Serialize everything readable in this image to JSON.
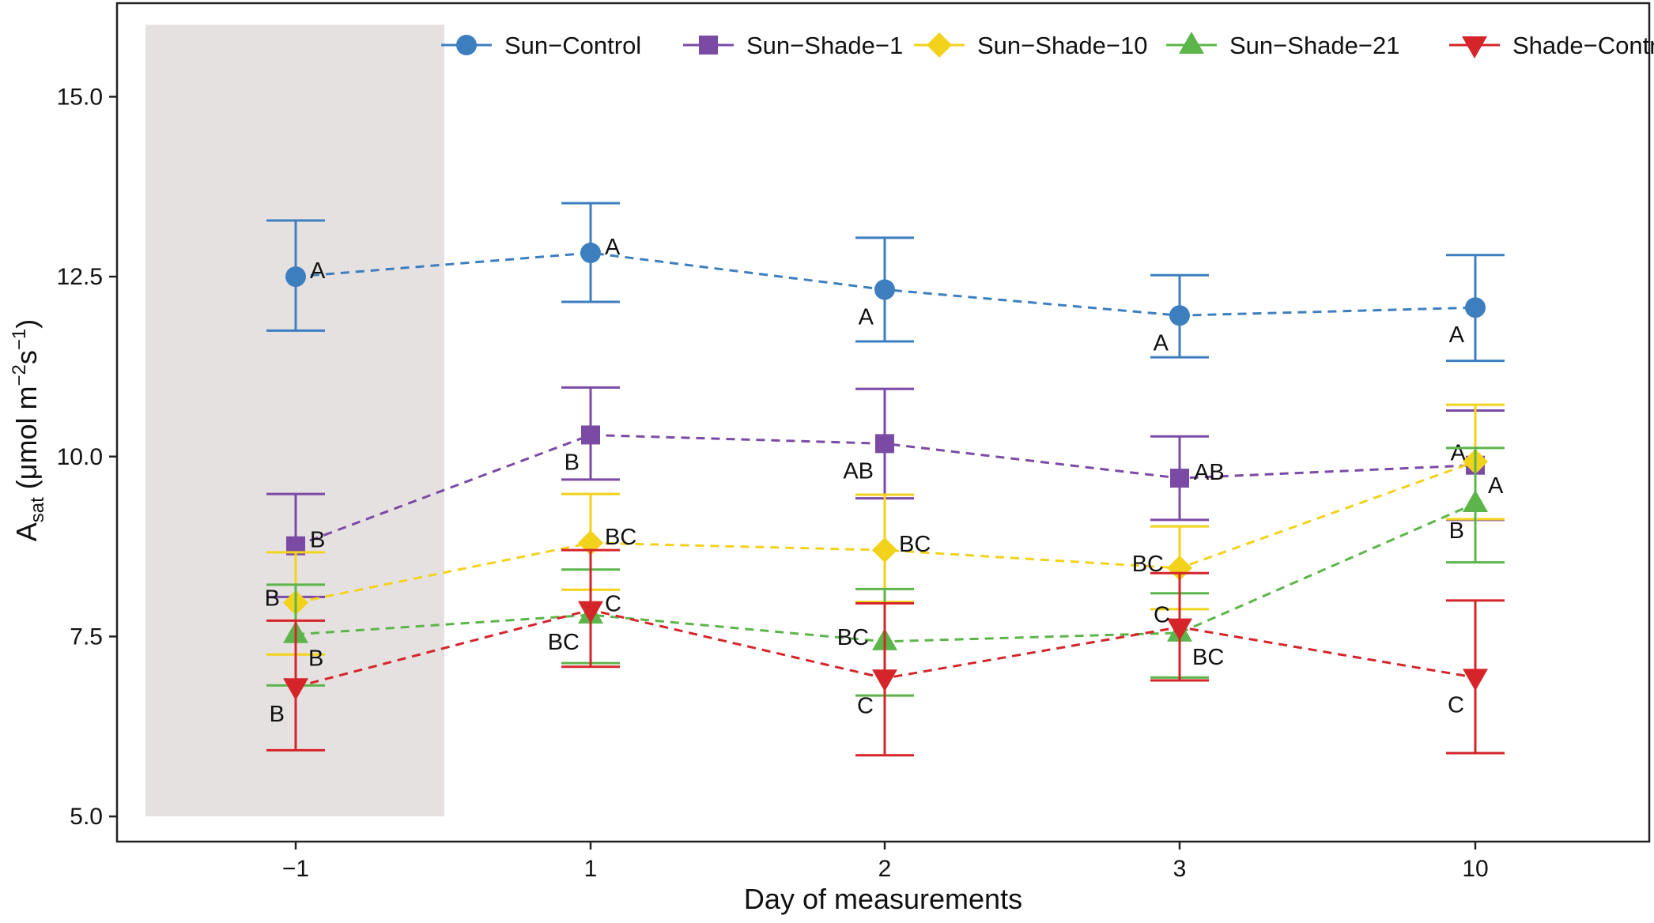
{
  "chart_data": {
    "type": "line",
    "xlabel": "Day of measurements",
    "ylabel_main": "A",
    "ylabel_sub": "sat",
    "ylabel_unit_prefix": " (μmol m",
    "ylabel_unit_sup1": "−2",
    "ylabel_unit_mid": "s",
    "ylabel_unit_sup2": "−1",
    "ylabel_unit_suffix": ")",
    "categories": [
      "−1",
      "1",
      "2",
      "3",
      "10"
    ],
    "ylim": [
      4.65,
      16.3
    ],
    "yticks": [
      5.0,
      7.5,
      10.0,
      12.5,
      15.0
    ],
    "ytick_labels": [
      "5.0",
      "7.5",
      "10.0",
      "12.5",
      "15.0"
    ],
    "grid": false,
    "legend_position": "top",
    "shaded_region": {
      "from_category": "−1",
      "y_from": 5.0,
      "y_to": 16.0,
      "color": "#e6e1e1"
    },
    "series": [
      {
        "name": "Sun−Control",
        "color": "#3d7ebf",
        "marker": "circle",
        "values": [
          12.5,
          12.83,
          12.32,
          11.96,
          12.07
        ],
        "err_low": [
          11.75,
          12.15,
          11.6,
          11.38,
          11.33
        ],
        "err_high": [
          13.28,
          13.52,
          13.04,
          12.52,
          12.8
        ],
        "letters": [
          "A",
          "A",
          "A",
          "A",
          "A"
        ],
        "letter_pos": [
          "right",
          "right",
          "below-left",
          "below-left",
          "below-left"
        ]
      },
      {
        "name": "Sun−Shade−1",
        "color": "#7b4aa5",
        "marker": "square",
        "values": [
          8.76,
          10.3,
          10.18,
          9.7,
          9.88
        ],
        "err_low": [
          8.05,
          9.68,
          9.42,
          9.12,
          9.12
        ],
        "err_high": [
          9.48,
          10.96,
          10.94,
          10.28,
          10.64
        ],
        "letters": [
          "B",
          "B",
          "AB",
          "AB",
          "A"
        ],
        "letter_pos": [
          "right",
          "below-left",
          "below-left",
          "right",
          "above-left"
        ]
      },
      {
        "name": "Sun−Shade−10",
        "color": "#f2d21b",
        "marker": "diamond",
        "values": [
          7.97,
          8.8,
          8.7,
          8.45,
          9.93
        ],
        "err_low": [
          7.25,
          8.15,
          7.98,
          7.88,
          9.13
        ],
        "err_high": [
          8.67,
          9.48,
          9.47,
          9.03,
          10.72
        ],
        "letters": [
          "B",
          "BC",
          "BC",
          "BC",
          "A"
        ],
        "letter_pos": [
          "left",
          "right",
          "right",
          "left",
          "below-right"
        ]
      },
      {
        "name": "Sun−Shade−21",
        "color": "#5cb54a",
        "marker": "triangle-up",
        "values": [
          7.53,
          7.8,
          7.43,
          7.55,
          9.35
        ],
        "err_low": [
          6.82,
          7.13,
          6.68,
          6.93,
          8.53
        ],
        "err_high": [
          8.22,
          8.43,
          8.16,
          8.1,
          10.12
        ],
        "letters": [
          "B",
          "BC",
          "BC",
          "BC",
          "B"
        ],
        "letter_pos": [
          "below-right",
          "below-left",
          "left",
          "below-right",
          "below-left"
        ]
      },
      {
        "name": "Shade−Control",
        "color": "#d5252a",
        "marker": "triangle-down",
        "values": [
          6.8,
          7.87,
          6.92,
          7.63,
          6.93
        ],
        "err_low": [
          5.92,
          7.08,
          5.85,
          6.89,
          5.88
        ],
        "err_high": [
          7.72,
          8.7,
          7.96,
          8.38,
          8.0
        ],
        "letters": [
          "B",
          "C",
          "C",
          "C",
          "C"
        ],
        "letter_pos": [
          "below-left",
          "right",
          "below-left",
          "above-left",
          "below-left"
        ]
      }
    ]
  }
}
